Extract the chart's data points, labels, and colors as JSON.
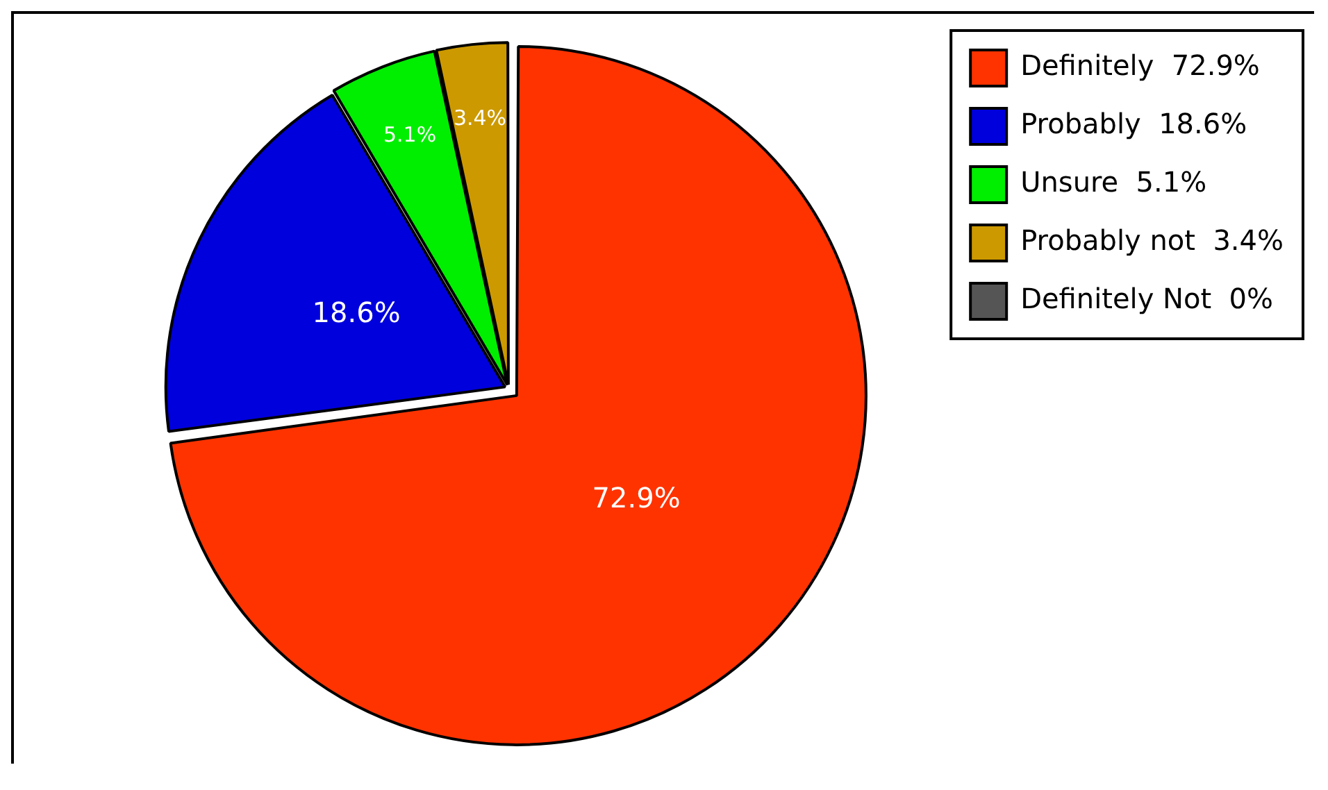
{
  "chart_data": {
    "type": "pie",
    "categories": [
      "Definitely  72.9%",
      "Probably  18.6%",
      "Unsure  5.1%",
      "Probably not  3.4%",
      "Definitely Not  0%"
    ],
    "values": [
      72.9,
      18.6,
      5.1,
      3.4,
      0
    ],
    "colors": [
      "#ff3300",
      "#0000dd",
      "#00ee00",
      "#cc9900",
      "#555555"
    ],
    "value_labels": [
      "72.9%",
      "18.6%",
      "5.1%",
      "3.4%",
      null
    ],
    "legend": "top right"
  }
}
